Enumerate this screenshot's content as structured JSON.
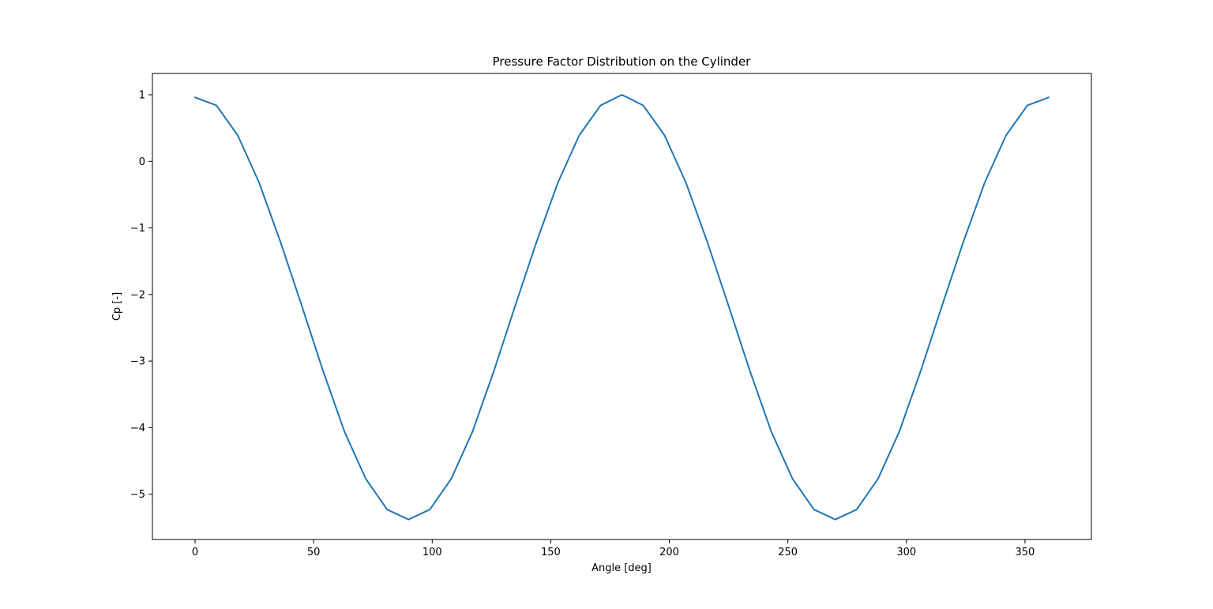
{
  "chart_data": {
    "type": "line",
    "title": "Pressure Factor Distribution on the Cylinder",
    "xlabel": "Angle [deg]",
    "ylabel": "Cp [-]",
    "xlim": [
      -18,
      378
    ],
    "ylim": [
      -5.68,
      1.32
    ],
    "grid": false,
    "legend": "none",
    "x_ticks": [
      0,
      50,
      100,
      150,
      200,
      250,
      300,
      350
    ],
    "y_ticks": [
      1,
      0,
      -1,
      -2,
      -3,
      -4,
      -5
    ],
    "x_tick_labels": [
      "0",
      "50",
      "100",
      "150",
      "200",
      "250",
      "300",
      "350"
    ],
    "y_tick_labels": [
      "1",
      "0",
      "−1",
      "−2",
      "−3",
      "−4",
      "−5"
    ],
    "series": [
      {
        "color": "#1f77b4",
        "x": [
          0,
          9,
          18,
          27,
          36,
          45,
          54,
          63,
          72,
          81,
          90,
          99,
          108,
          117,
          126,
          135,
          144,
          153,
          162,
          171,
          180,
          189,
          198,
          207,
          216,
          225,
          234,
          243,
          252,
          261,
          270,
          279,
          288,
          297,
          306,
          315,
          324,
          333,
          342,
          351,
          360
        ],
        "y": [
          0.96,
          0.84,
          0.39,
          -0.32,
          -1.21,
          -2.17,
          -3.15,
          -4.06,
          -4.77,
          -5.23,
          -5.38,
          -5.23,
          -4.77,
          -4.06,
          -3.15,
          -2.17,
          -1.21,
          -0.32,
          0.39,
          0.84,
          1.0,
          0.84,
          0.39,
          -0.32,
          -1.21,
          -2.17,
          -3.15,
          -4.06,
          -4.77,
          -5.23,
          -5.38,
          -5.23,
          -4.77,
          -4.06,
          -3.15,
          -2.17,
          -1.21,
          -0.32,
          0.39,
          0.84,
          0.96
        ]
      }
    ]
  }
}
